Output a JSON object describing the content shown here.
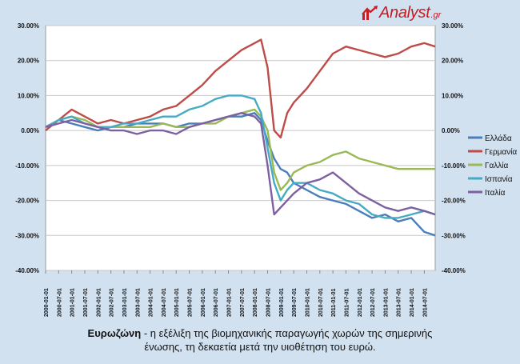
{
  "logo": {
    "name": "Analyst",
    "tld": ".gr"
  },
  "caption": {
    "bold": "Ευρωζώνη",
    "rest_line1": " - η εξέλιξη της βιομηχανικής παραγωγής χωρών της σημερινής",
    "line2": "ένωσης, τη δεκαετία μετά την υιοθέτηση του ευρώ."
  },
  "chart_data": {
    "type": "line",
    "title": "",
    "xlabel": "",
    "ylabel": "",
    "y_tick_labels": [
      "30.00%",
      "20.00%",
      "10.00%",
      "0.00%",
      "-10.00%",
      "-20.00%",
      "-30.00%",
      "-40.00%"
    ],
    "y_ticks": [
      30,
      20,
      10,
      0,
      -10,
      -20,
      -30,
      -40
    ],
    "ylim": [
      -40,
      30
    ],
    "dual_y_axis": true,
    "x_tick_labels": [
      "2000-01-01",
      "2000-07-01",
      "2001-01-01",
      "2001-07-01",
      "2002-01-01",
      "2002-07-01",
      "2003-01-01",
      "2003-07-01",
      "2004-01-01",
      "2004-07-01",
      "2005-01-01",
      "2005-07-01",
      "2006-01-01",
      "2006-07-01",
      "2007-01-01",
      "2007-07-01",
      "2008-01-01",
      "2008-07-01",
      "2009-01-01",
      "2009-07-01",
      "2010-01-01",
      "2010-07-01",
      "2011-01-01",
      "2011-07-01",
      "2012-01-01",
      "2012-07-01",
      "2013-01-01",
      "2013-07-01",
      "2014-01-01",
      "2014-07-01"
    ],
    "x": [
      "2000-01",
      "2000-07",
      "2001-01",
      "2001-07",
      "2002-01",
      "2002-07",
      "2003-01",
      "2003-07",
      "2004-01",
      "2004-07",
      "2005-01",
      "2005-07",
      "2006-01",
      "2006-07",
      "2007-01",
      "2007-07",
      "2008-01",
      "2008-04",
      "2008-07",
      "2008-10",
      "2009-01",
      "2009-04",
      "2009-07",
      "2010-01",
      "2010-07",
      "2011-01",
      "2011-07",
      "2012-01",
      "2012-07",
      "2013-01",
      "2013-07",
      "2014-01",
      "2014-07",
      "2014-12"
    ],
    "legend_position": "right",
    "grid": true,
    "series": [
      {
        "name": "Ελλάδα",
        "color": "#4a7ebb",
        "values": [
          1,
          3,
          2,
          1,
          0,
          1,
          1,
          2,
          2,
          2,
          1,
          2,
          2,
          3,
          4,
          4,
          5,
          3,
          -3,
          -8,
          -11,
          -12,
          -15,
          -17,
          -19,
          -20,
          -21,
          -23,
          -25,
          -24,
          -26,
          -25,
          -29,
          -30
        ]
      },
      {
        "name": "Γερμανία",
        "color": "#be4b48",
        "values": [
          0,
          3,
          6,
          4,
          2,
          3,
          2,
          3,
          4,
          6,
          7,
          10,
          13,
          17,
          20,
          23,
          25,
          26,
          18,
          0,
          -2,
          5,
          8,
          12,
          17,
          22,
          24,
          23,
          22,
          21,
          22,
          24,
          25,
          24
        ]
      },
      {
        "name": "Γαλλία",
        "color": "#98b954",
        "values": [
          1,
          3,
          4,
          3,
          1,
          1,
          1,
          1,
          1,
          2,
          1,
          1,
          2,
          2,
          4,
          5,
          6,
          4,
          0,
          -12,
          -17,
          -15,
          -12,
          -10,
          -9,
          -7,
          -6,
          -8,
          -9,
          -10,
          -11,
          -11,
          -11,
          -11
        ]
      },
      {
        "name": "Ισπανία",
        "color": "#46aac5",
        "values": [
          1,
          3,
          4,
          2,
          1,
          1,
          2,
          2,
          3,
          4,
          4,
          6,
          7,
          9,
          10,
          10,
          9,
          5,
          -5,
          -15,
          -20,
          -17,
          -15,
          -15,
          -17,
          -18,
          -20,
          -21,
          -24,
          -25,
          -25,
          -24,
          -23,
          -24
        ]
      },
      {
        "name": "Ιταλία",
        "color": "#7d60a0",
        "values": [
          1,
          2,
          3,
          2,
          1,
          0,
          0,
          -1,
          0,
          0,
          -1,
          1,
          2,
          3,
          4,
          5,
          4,
          2,
          -10,
          -24,
          -22,
          -20,
          -18,
          -15,
          -14,
          -12,
          -15,
          -18,
          -20,
          -22,
          -23,
          -22,
          -23,
          -24
        ]
      }
    ]
  }
}
